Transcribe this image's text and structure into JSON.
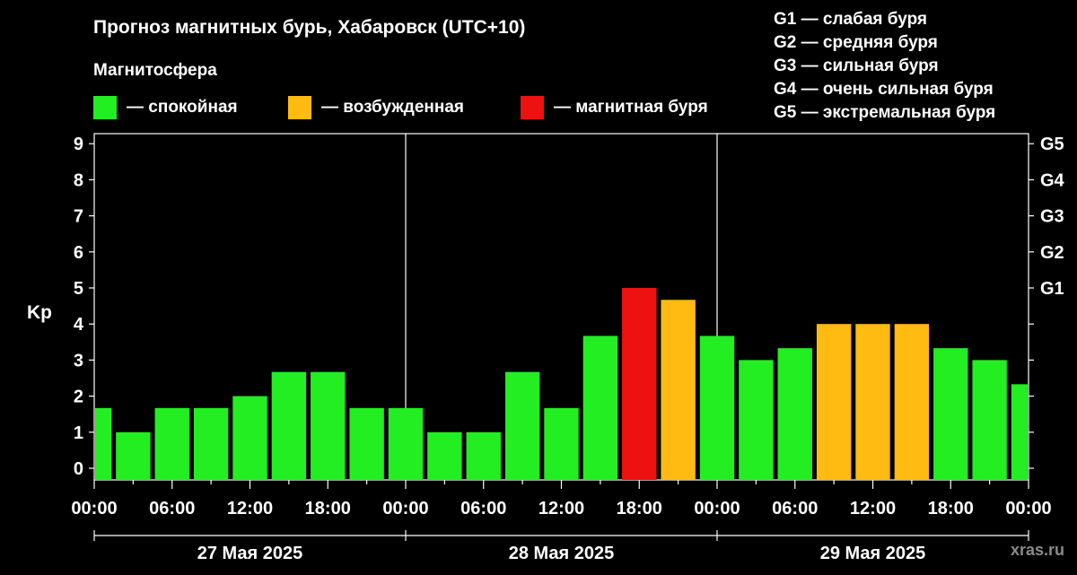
{
  "title": "Прогноз магнитных бурь, Хабаровск (UTC+10)",
  "subtitle": "Магнитосфера",
  "legend": [
    {
      "label": "— спокойная",
      "color": "#22ee22"
    },
    {
      "label": "— возбужденная",
      "color": "#ffbb11"
    },
    {
      "label": "— магнитная буря",
      "color": "#ee1111"
    }
  ],
  "g_legend": [
    "G1 — слабая буря",
    "G2 — средняя буря",
    "G3 — сильная буря",
    "G4 — очень сильная буря",
    "G5 — экстремальная буря"
  ],
  "watermark": "xras.ru",
  "chart_data": {
    "type": "bar",
    "ylabel": "Kp",
    "ylim": [
      0,
      9
    ],
    "y_ticks": [
      "0",
      "1",
      "2",
      "3",
      "4",
      "5",
      "6",
      "7",
      "8",
      "9"
    ],
    "right_ticks": [
      {
        "label": "G1",
        "kp": 5
      },
      {
        "label": "G2",
        "kp": 6
      },
      {
        "label": "G3",
        "kp": 7
      },
      {
        "label": "G4",
        "kp": 8
      },
      {
        "label": "G5",
        "kp": 9
      }
    ],
    "x_hours": [
      0,
      72
    ],
    "x_tick_labels": [
      "00:00",
      "06:00",
      "12:00",
      "18:00",
      "00:00",
      "06:00",
      "12:00",
      "18:00",
      "00:00",
      "06:00",
      "12:00",
      "18:00",
      "00:00"
    ],
    "days": [
      "27 Мая 2025",
      "28 Мая 2025",
      "29 Мая 2025"
    ],
    "status_colors": {
      "quiet": "#22ee22",
      "active": "#ffbb11",
      "storm": "#ee1111"
    },
    "bars": [
      {
        "start": 0,
        "end": 1.5,
        "kp": 1.67,
        "status": "quiet"
      },
      {
        "start": 1.5,
        "end": 4.5,
        "kp": 1.0,
        "status": "quiet"
      },
      {
        "start": 4.5,
        "end": 7.5,
        "kp": 1.67,
        "status": "quiet"
      },
      {
        "start": 7.5,
        "end": 10.5,
        "kp": 1.67,
        "status": "quiet"
      },
      {
        "start": 10.5,
        "end": 13.5,
        "kp": 2.0,
        "status": "quiet"
      },
      {
        "start": 13.5,
        "end": 16.5,
        "kp": 2.67,
        "status": "quiet"
      },
      {
        "start": 16.5,
        "end": 19.5,
        "kp": 2.67,
        "status": "quiet"
      },
      {
        "start": 19.5,
        "end": 22.5,
        "kp": 1.67,
        "status": "quiet"
      },
      {
        "start": 22.5,
        "end": 25.5,
        "kp": 1.67,
        "status": "quiet"
      },
      {
        "start": 25.5,
        "end": 28.5,
        "kp": 1.0,
        "status": "quiet"
      },
      {
        "start": 28.5,
        "end": 31.5,
        "kp": 1.0,
        "status": "quiet"
      },
      {
        "start": 31.5,
        "end": 34.5,
        "kp": 2.67,
        "status": "quiet"
      },
      {
        "start": 34.5,
        "end": 37.5,
        "kp": 1.67,
        "status": "quiet"
      },
      {
        "start": 37.5,
        "end": 40.5,
        "kp": 3.67,
        "status": "quiet"
      },
      {
        "start": 40.5,
        "end": 43.5,
        "kp": 5.0,
        "status": "storm"
      },
      {
        "start": 43.5,
        "end": 46.5,
        "kp": 4.67,
        "status": "active"
      },
      {
        "start": 46.5,
        "end": 49.5,
        "kp": 3.67,
        "status": "quiet"
      },
      {
        "start": 49.5,
        "end": 52.5,
        "kp": 3.0,
        "status": "quiet"
      },
      {
        "start": 52.5,
        "end": 55.5,
        "kp": 3.33,
        "status": "quiet"
      },
      {
        "start": 55.5,
        "end": 58.5,
        "kp": 4.0,
        "status": "active"
      },
      {
        "start": 58.5,
        "end": 61.5,
        "kp": 4.0,
        "status": "active"
      },
      {
        "start": 61.5,
        "end": 64.5,
        "kp": 4.0,
        "status": "active"
      },
      {
        "start": 64.5,
        "end": 67.5,
        "kp": 3.33,
        "status": "quiet"
      },
      {
        "start": 67.5,
        "end": 70.5,
        "kp": 3.0,
        "status": "quiet"
      },
      {
        "start": 70.5,
        "end": 72,
        "kp": 2.33,
        "status": "quiet"
      }
    ]
  }
}
